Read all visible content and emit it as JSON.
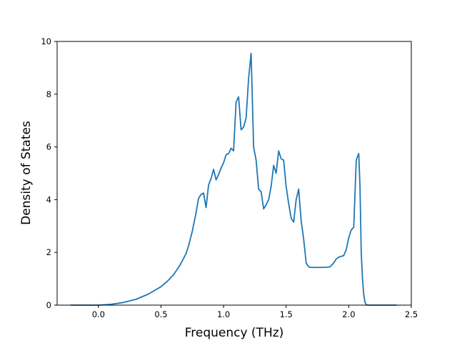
{
  "chart_data": {
    "type": "line",
    "title": "",
    "xlabel": "Frequency (THz)",
    "ylabel": "Density of States",
    "xlim": [
      -0.33,
      2.5
    ],
    "ylim": [
      0,
      10
    ],
    "xticks": [
      0.0,
      0.5,
      1.0,
      1.5,
      2.0,
      2.5
    ],
    "xtick_labels": [
      "0.0",
      "0.5",
      "1.0",
      "1.5",
      "2.0",
      "2.5"
    ],
    "yticks": [
      0,
      2,
      4,
      6,
      8,
      10
    ],
    "ytick_labels": [
      "0",
      "2",
      "4",
      "6",
      "8",
      "10"
    ],
    "grid": false,
    "legend": "none",
    "color": "#1f77b4",
    "series": [
      {
        "x": [
          -0.22,
          -0.1,
          0.0,
          0.1,
          0.2,
          0.3,
          0.4,
          0.5,
          0.55,
          0.6,
          0.65,
          0.7,
          0.72,
          0.75,
          0.78,
          0.8,
          0.82,
          0.84,
          0.86,
          0.88,
          0.9,
          0.92,
          0.94,
          0.96,
          0.98,
          1.0,
          1.02,
          1.04,
          1.06,
          1.08,
          1.1,
          1.12,
          1.14,
          1.16,
          1.18,
          1.2,
          1.22,
          1.24,
          1.26,
          1.28,
          1.3,
          1.32,
          1.34,
          1.36,
          1.38,
          1.4,
          1.42,
          1.44,
          1.46,
          1.48,
          1.5,
          1.52,
          1.54,
          1.56,
          1.58,
          1.6,
          1.62,
          1.64,
          1.66,
          1.68,
          1.7,
          1.75,
          1.8,
          1.85,
          1.88,
          1.9,
          1.92,
          1.94,
          1.96,
          1.98,
          2.0,
          2.02,
          2.04,
          2.06,
          2.08,
          2.09,
          2.1,
          2.11,
          2.12,
          2.13,
          2.14,
          2.15,
          2.16,
          2.2,
          2.3,
          2.38
        ],
        "y": [
          0.0,
          0.0,
          0.0,
          0.03,
          0.1,
          0.22,
          0.42,
          0.7,
          0.9,
          1.15,
          1.5,
          1.95,
          2.25,
          2.8,
          3.5,
          4.05,
          4.2,
          4.25,
          3.7,
          4.55,
          4.8,
          5.15,
          4.75,
          4.95,
          5.2,
          5.4,
          5.7,
          5.75,
          5.95,
          5.85,
          7.7,
          7.9,
          6.65,
          6.75,
          7.1,
          8.6,
          9.55,
          6.0,
          5.5,
          4.4,
          4.3,
          3.65,
          3.8,
          4.0,
          4.5,
          5.3,
          5.0,
          5.85,
          5.55,
          5.5,
          4.5,
          3.85,
          3.3,
          3.15,
          4.0,
          4.4,
          3.2,
          2.5,
          1.6,
          1.45,
          1.43,
          1.43,
          1.43,
          1.45,
          1.6,
          1.75,
          1.82,
          1.85,
          1.88,
          2.1,
          2.55,
          2.85,
          2.95,
          5.5,
          5.75,
          4.5,
          2.0,
          1.0,
          0.4,
          0.1,
          0.02,
          0.0,
          0.0,
          0.0,
          0.0,
          0.0
        ]
      }
    ]
  }
}
